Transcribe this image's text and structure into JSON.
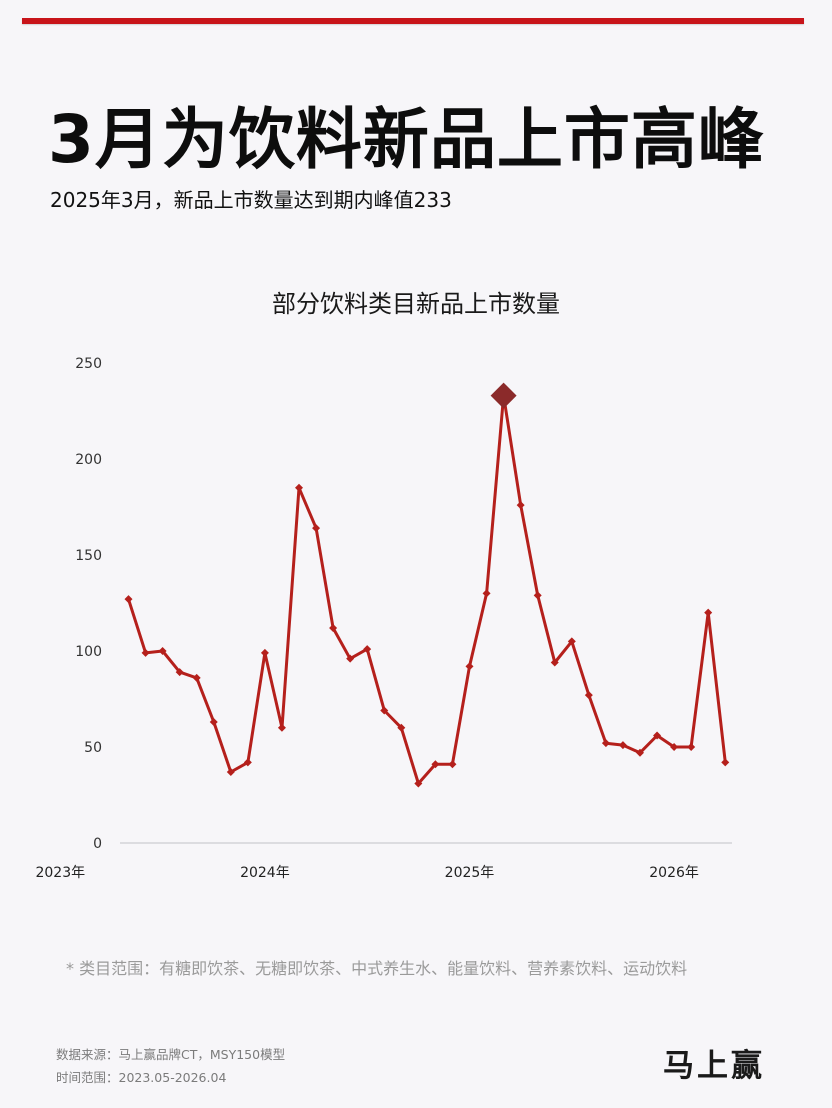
{
  "headline": "3月为饮料新品上市高峰",
  "subheadline": "2025年3月，新品上市数量达到期内峰值233",
  "chart_data": {
    "type": "line",
    "title": "部分饮料类目新品上市数量",
    "x": [
      "2023-05",
      "2023-06",
      "2023-07",
      "2023-08",
      "2023-09",
      "2023-10",
      "2023-11",
      "2023-12",
      "2024-01",
      "2024-02",
      "2024-03",
      "2024-04",
      "2024-05",
      "2024-06",
      "2024-07",
      "2024-08",
      "2024-09",
      "2024-10",
      "2024-11",
      "2024-12",
      "2025-01",
      "2025-02",
      "2025-03",
      "2025-04",
      "2025-05",
      "2025-06",
      "2025-07",
      "2025-08",
      "2025-09",
      "2025-10",
      "2025-11",
      "2025-12",
      "2026-01",
      "2026-02",
      "2026-03",
      "2026-04"
    ],
    "values": [
      127,
      99,
      100,
      89,
      86,
      63,
      37,
      42,
      99,
      60,
      185,
      164,
      112,
      96,
      101,
      69,
      60,
      31,
      41,
      41,
      92,
      130,
      233,
      176,
      129,
      94,
      105,
      77,
      52,
      51,
      47,
      56,
      50,
      50,
      120,
      42
    ],
    "highlight": {
      "x": "2025-03",
      "value": 233
    },
    "yticks": [
      0,
      50,
      100,
      150,
      200,
      250
    ],
    "ylim": [
      0,
      250
    ],
    "xtick_labels": [
      {
        "x": "2023-01",
        "label": "2023年"
      },
      {
        "x": "2024-01",
        "label": "2024年"
      },
      {
        "x": "2025-01",
        "label": "2025年"
      },
      {
        "x": "2026-01",
        "label": "2026年"
      }
    ],
    "line_color": "#b5201c",
    "highlight_color": "#8b2a2a"
  },
  "footnote": "* 类目范围：有糖即饮茶、无糖即饮茶、中式养生水、能量饮料、营养素饮料、运动饮料",
  "source": "数据来源：马上赢品牌CT，MSY150模型",
  "time_range": "时间范围：2023.05-2026.04",
  "logo_text": "马上赢",
  "accent_color": "#c8141a"
}
